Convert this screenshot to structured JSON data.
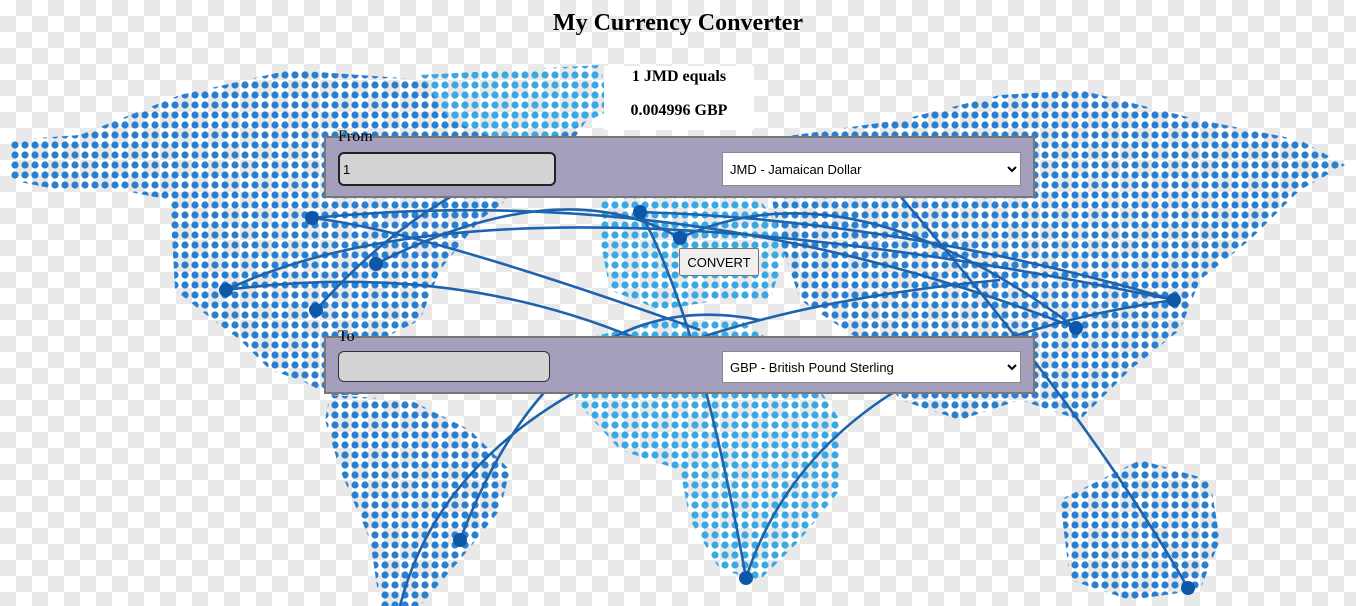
{
  "page": {
    "title": "My Currency Converter"
  },
  "result": {
    "line1": "1 JMD equals",
    "line2": "0.004996 GBP"
  },
  "from": {
    "legend": "From",
    "amount_value": "1",
    "currency_selected": "JMD - Jamaican Dollar"
  },
  "to": {
    "legend": "To",
    "amount_value": "",
    "currency_selected": "GBP - British Pound Sterling"
  },
  "convert_label": "CONVERT",
  "colors": {
    "panel": "#a39fbd",
    "map_dark": "#1a5fa8",
    "map_light": "#38a8e0",
    "route_line": "#1d63ad"
  },
  "background": {
    "image": "world-map-dotted",
    "icon": "network-routes"
  }
}
